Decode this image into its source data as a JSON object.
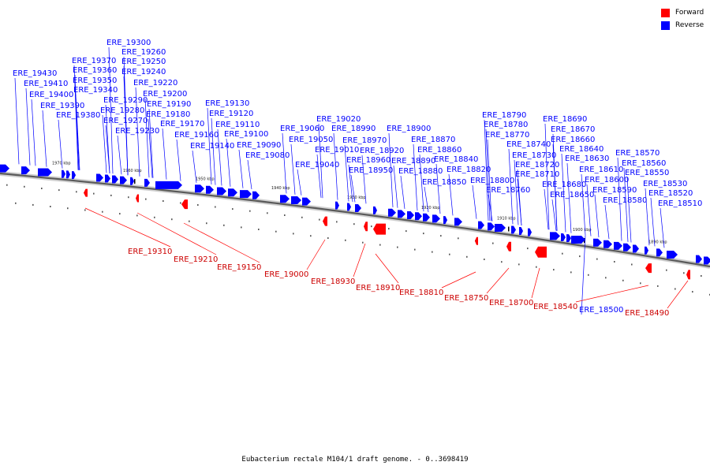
{
  "legend": {
    "forward_label": "Forward",
    "reverse_label": "Reverse",
    "forward_color": "#ff0000",
    "reverse_color": "#0000ff"
  },
  "caption": "Eubacterium rectale M104/1 draft genome. - 0..3698419",
  "scale_ticks": [
    "1970 kbp",
    "1960 kbp",
    "1950 kbp",
    "1940 kbp",
    "1930 kbp",
    "1920 kbp",
    "1910 kbp",
    "1900 kbp",
    "1890 kbp"
  ],
  "reverse_genes": [
    "ERE_19430",
    "ERE_19410",
    "ERE_19400",
    "ERE_19390",
    "ERE_19380",
    "ERE_19370",
    "ERE_19360",
    "ERE_19350",
    "ERE_19340",
    "ERE_19300",
    "ERE_19290",
    "ERE_19280",
    "ERE_19270",
    "ERE_19260",
    "ERE_19250",
    "ERE_19240",
    "ERE_19230",
    "ERE_19220",
    "ERE_19200",
    "ERE_19190",
    "ERE_19180",
    "ERE_19170",
    "ERE_19160",
    "ERE_19140",
    "ERE_19130",
    "ERE_19120",
    "ERE_19110",
    "ERE_19100",
    "ERE_19090",
    "ERE_19080",
    "ERE_19060",
    "ERE_19050",
    "ERE_19040",
    "ERE_19020",
    "ERE_19010",
    "ERE_18990",
    "ERE_18970",
    "ERE_18960",
    "ERE_18950",
    "ERE_18920",
    "ERE_18900",
    "ERE_18890",
    "ERE_18880",
    "ERE_18870",
    "ERE_18860",
    "ERE_18850",
    "ERE_18840",
    "ERE_18820",
    "ERE_18800",
    "ERE_18790",
    "ERE_18780",
    "ERE_18770",
    "ERE_18760",
    "ERE_18740",
    "ERE_18730",
    "ERE_18720",
    "ERE_18710",
    "ERE_18690",
    "ERE_18680",
    "ERE_18670",
    "ERE_18660",
    "ERE_18650",
    "ERE_18640",
    "ERE_18630",
    "ERE_18610",
    "ERE_18600",
    "ERE_18590",
    "ERE_18580",
    "ERE_18570",
    "ERE_18560",
    "ERE_18550",
    "ERE_18530",
    "ERE_18520",
    "ERE_18510",
    "ERE_18500"
  ],
  "forward_genes": [
    "ERE_19310",
    "ERE_19210",
    "ERE_19150",
    "ERE_19000",
    "ERE_18930",
    "ERE_18910",
    "ERE_18810",
    "ERE_18750",
    "ERE_18700",
    "ERE_18540",
    "ERE_18490"
  ]
}
